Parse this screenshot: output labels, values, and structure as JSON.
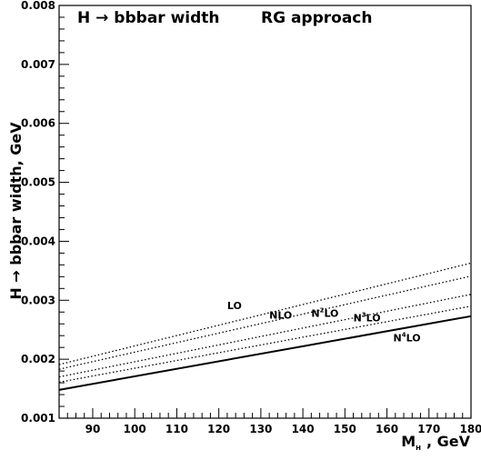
{
  "chart_data": {
    "type": "line",
    "title": "H → bbbar width",
    "subtitle": "RG approach",
    "xlabel": "M_H , GeV",
    "xlabel_main": "M",
    "xlabel_sub": "H",
    "xlabel_rest": ", GeV",
    "ylabel": "H → bbbar width, GeV",
    "xlim": [
      82,
      180
    ],
    "ylim": [
      0.001,
      0.008
    ],
    "xticks": [
      90,
      100,
      110,
      120,
      130,
      140,
      150,
      160,
      170,
      180
    ],
    "yticks": [
      0.001,
      0.002,
      0.003,
      0.004,
      0.005,
      0.006,
      0.007,
      0.008
    ],
    "grid": false,
    "x": [
      82,
      180
    ],
    "series": [
      {
        "name": "LO",
        "label_main": "LO",
        "label_sup": "",
        "label_tail": "",
        "style": "dotted",
        "values": [
          0.00191,
          0.00363
        ],
        "label_pos": [
          122,
          0.00285
        ]
      },
      {
        "name": "NLO",
        "label_main": "NLO",
        "label_sup": "",
        "label_tail": "",
        "style": "dotted",
        "values": [
          0.00183,
          0.00341
        ],
        "label_pos": [
          132,
          0.00269
        ]
      },
      {
        "name": "N2LO",
        "label_main": "N",
        "label_sup": "2",
        "label_tail": "LO",
        "style": "dotted",
        "values": [
          0.0017,
          0.0031
        ],
        "label_pos": [
          142,
          0.00272
        ]
      },
      {
        "name": "N3LO",
        "label_main": "N",
        "label_sup": "3",
        "label_tail": "LO",
        "style": "dotted",
        "values": [
          0.00161,
          0.0029
        ],
        "label_pos": [
          152,
          0.00264
        ]
      },
      {
        "name": "N4LO",
        "label_main": "N",
        "label_sup": "4",
        "label_tail": "LO",
        "style": "solid",
        "values": [
          0.00148,
          0.00273
        ],
        "label_pos": [
          161.5,
          0.0023
        ]
      }
    ]
  }
}
